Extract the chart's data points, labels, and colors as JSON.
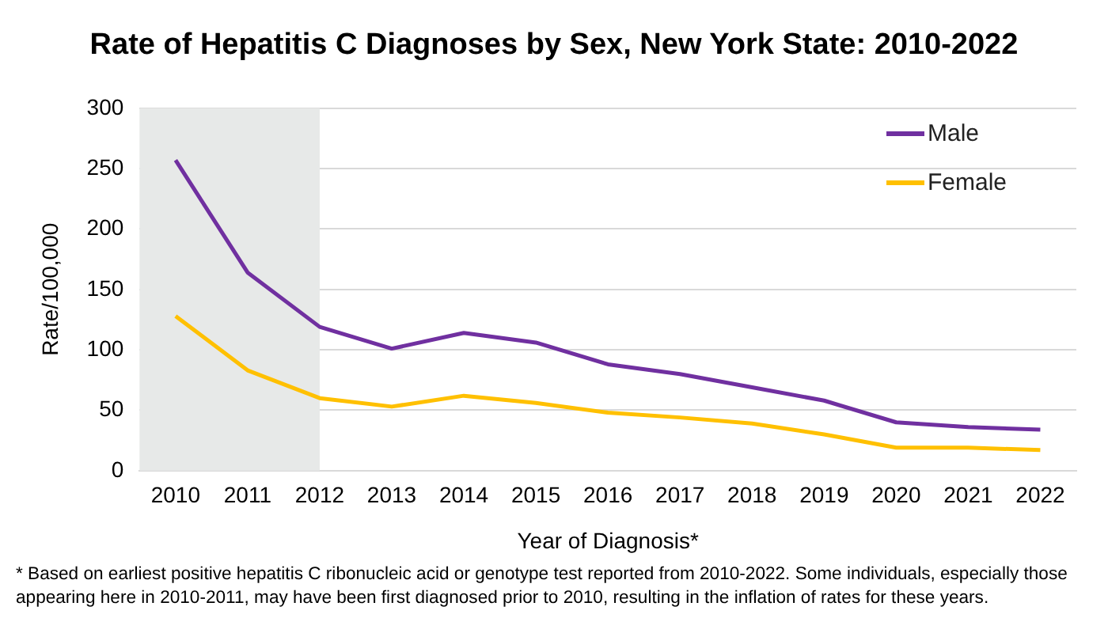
{
  "chart_data": {
    "type": "line",
    "title": "Rate of Hepatitis C Diagnoses by Sex, New York State: 2010-2022",
    "xlabel": "Year of Diagnosis*",
    "ylabel": "Rate/100,000",
    "categories": [
      "2010",
      "2011",
      "2012",
      "2013",
      "2014",
      "2015",
      "2016",
      "2017",
      "2018",
      "2019",
      "2020",
      "2021",
      "2022"
    ],
    "series": [
      {
        "name": "Male",
        "color": "#7030a0",
        "values": [
          257,
          164,
          119,
          101,
          114,
          106,
          88,
          80,
          69,
          58,
          40,
          36,
          34
        ]
      },
      {
        "name": "Female",
        "color": "#ffc000",
        "values": [
          128,
          83,
          60,
          53,
          62,
          56,
          48,
          44,
          39,
          30,
          19,
          19,
          17
        ]
      }
    ],
    "ylim": [
      0,
      300
    ],
    "yticks": [
      0,
      50,
      100,
      150,
      200,
      250,
      300
    ],
    "grid": "y",
    "legend": "top right",
    "marker": "none",
    "bands": [
      {
        "axis": "x",
        "from": "2010",
        "to": "2012",
        "color": "#e7e9e8"
      }
    ],
    "annotations": [
      "* Based on earliest positive hepatitis C  ribonucleic acid or genotype test reported from 2010-2022. Some individuals, especially those appearing here in 2010-2011,  may have been first diagnosed prior to 2010, resulting in the inflation of rates for these years."
    ]
  }
}
